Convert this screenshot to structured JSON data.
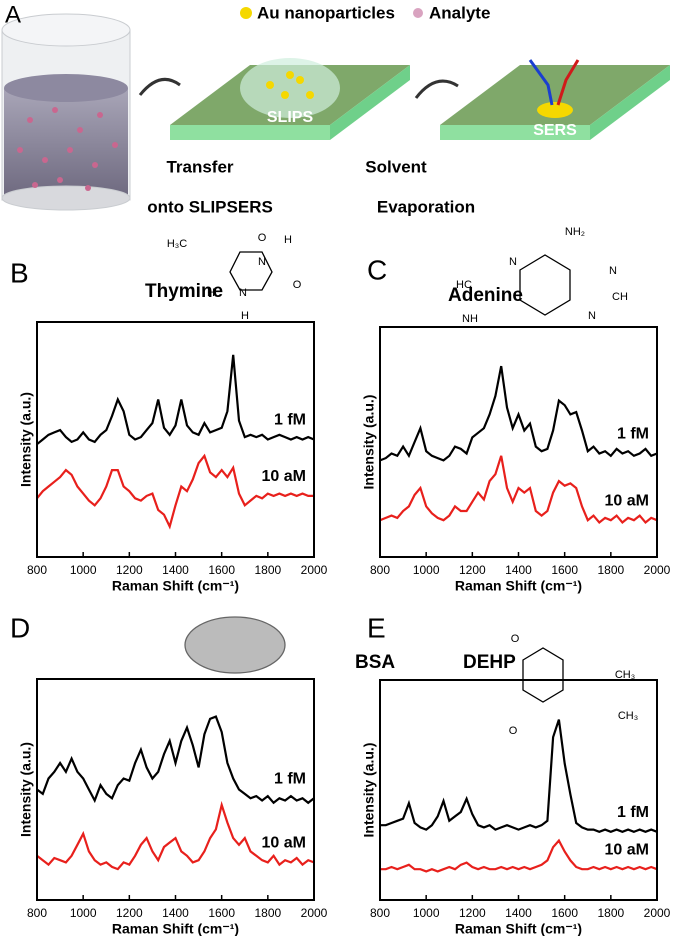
{
  "schematic": {
    "panel_label": "A",
    "legend": [
      "Au nanoparticles",
      "Analyte"
    ],
    "surfaces": [
      "SLIPS",
      "SERS"
    ],
    "steps": [
      [
        "Transfer",
        "onto SLIPSERS"
      ],
      [
        "Solvent",
        "Evaporation"
      ]
    ]
  },
  "chart_data": [
    {
      "type": "line",
      "panel_label": "B",
      "title": "Thymine",
      "xlabel": "Raman Shift (cm⁻¹)",
      "ylabel": "Intensity (a.u.)",
      "structure_labels": [
        "O",
        "H₃C",
        "N",
        "H",
        "H",
        "N",
        "O",
        "H"
      ],
      "xlim": [
        800,
        2000
      ],
      "xticks": [
        800,
        1000,
        1200,
        1400,
        1600,
        1800,
        2000
      ],
      "ylim": [
        0,
        100
      ],
      "x": [
        800,
        825,
        850,
        875,
        900,
        925,
        950,
        975,
        1000,
        1025,
        1050,
        1075,
        1100,
        1125,
        1150,
        1175,
        1200,
        1225,
        1250,
        1275,
        1300,
        1325,
        1350,
        1375,
        1400,
        1425,
        1450,
        1475,
        1500,
        1525,
        1550,
        1575,
        1600,
        1625,
        1650,
        1675,
        1700,
        1725,
        1750,
        1775,
        1800,
        1825,
        1850,
        1875,
        1900,
        1925,
        1950,
        1975,
        2000
      ],
      "series": [
        {
          "name": "1 fM",
          "color": "#000000",
          "values": [
            48,
            50,
            52,
            53,
            54,
            51,
            49,
            50,
            53,
            50,
            49,
            52,
            54,
            60,
            67,
            62,
            52,
            50,
            51,
            54,
            57,
            67,
            55,
            52,
            56,
            67,
            56,
            53,
            52,
            57,
            53,
            54,
            55,
            62,
            86,
            58,
            51,
            52,
            51,
            52,
            50,
            51,
            52,
            51,
            50,
            51,
            50,
            51,
            50
          ]
        },
        {
          "name": "10 aM",
          "color": "#e8201c",
          "values": [
            25,
            28,
            30,
            32,
            34,
            37,
            35,
            30,
            27,
            24,
            22,
            25,
            30,
            37,
            37,
            30,
            28,
            25,
            24,
            26,
            27,
            20,
            18,
            13,
            22,
            30,
            28,
            33,
            40,
            43,
            36,
            34,
            37,
            34,
            38,
            27,
            22,
            24,
            26,
            25,
            27,
            26,
            27,
            26,
            27,
            26,
            27,
            26,
            26
          ]
        }
      ]
    },
    {
      "type": "line",
      "panel_label": "C",
      "title": "Adenine",
      "xlabel": "Raman Shift (cm⁻¹)",
      "ylabel": "Intensity (a.u.)",
      "structure_labels": [
        "NH₂",
        "N",
        "N",
        "HC",
        "CH",
        "NH",
        "N"
      ],
      "xlim": [
        800,
        2000
      ],
      "xticks": [
        800,
        1000,
        1200,
        1400,
        1600,
        1800,
        2000
      ],
      "ylim": [
        0,
        100
      ],
      "x": [
        800,
        825,
        850,
        875,
        900,
        925,
        950,
        975,
        1000,
        1025,
        1050,
        1075,
        1100,
        1125,
        1150,
        1175,
        1200,
        1225,
        1250,
        1275,
        1300,
        1325,
        1350,
        1375,
        1400,
        1425,
        1450,
        1475,
        1500,
        1525,
        1550,
        1575,
        1600,
        1625,
        1650,
        1675,
        1700,
        1725,
        1750,
        1775,
        1800,
        1825,
        1850,
        1875,
        1900,
        1925,
        1950,
        1975,
        2000
      ],
      "series": [
        {
          "name": "1 fM",
          "color": "#000000",
          "values": [
            42,
            43,
            45,
            44,
            48,
            44,
            50,
            56,
            46,
            44,
            43,
            42,
            44,
            48,
            47,
            45,
            52,
            54,
            56,
            62,
            70,
            83,
            65,
            56,
            62,
            55,
            58,
            48,
            46,
            47,
            55,
            68,
            66,
            62,
            63,
            55,
            46,
            48,
            45,
            46,
            44,
            47,
            45,
            46,
            44,
            45,
            47,
            44,
            45
          ]
        },
        {
          "name": "10 aM",
          "color": "#e8201c",
          "values": [
            16,
            17,
            18,
            17,
            20,
            22,
            27,
            30,
            22,
            19,
            17,
            16,
            18,
            22,
            20,
            20,
            24,
            28,
            25,
            33,
            36,
            44,
            30,
            24,
            30,
            28,
            30,
            20,
            18,
            20,
            28,
            33,
            31,
            32,
            30,
            22,
            16,
            18,
            15,
            17,
            16,
            18,
            15,
            17,
            16,
            18,
            15,
            17,
            16
          ]
        }
      ]
    },
    {
      "type": "line",
      "panel_label": "D",
      "title": "BSA",
      "xlabel": "Raman Shift (cm⁻¹)",
      "ylabel": "Intensity (a.u.)",
      "structure_labels": [],
      "xlim": [
        800,
        2000
      ],
      "xticks": [
        800,
        1000,
        1200,
        1400,
        1600,
        1800,
        2000
      ],
      "ylim": [
        0,
        100
      ],
      "x": [
        800,
        825,
        850,
        875,
        900,
        925,
        950,
        975,
        1000,
        1025,
        1050,
        1075,
        1100,
        1125,
        1150,
        1175,
        1200,
        1225,
        1250,
        1275,
        1300,
        1325,
        1350,
        1375,
        1400,
        1425,
        1450,
        1475,
        1500,
        1525,
        1550,
        1575,
        1600,
        1625,
        1650,
        1675,
        1700,
        1725,
        1750,
        1775,
        1800,
        1825,
        1850,
        1875,
        1900,
        1925,
        1950,
        1975,
        2000
      ],
      "series": [
        {
          "name": "1 fM",
          "color": "#000000",
          "values": [
            50,
            48,
            55,
            58,
            62,
            58,
            64,
            58,
            55,
            50,
            45,
            52,
            48,
            46,
            52,
            55,
            54,
            62,
            68,
            60,
            55,
            58,
            66,
            72,
            62,
            72,
            78,
            70,
            60,
            75,
            82,
            83,
            76,
            62,
            55,
            50,
            48,
            46,
            47,
            45,
            47,
            44,
            46,
            45,
            47,
            45,
            46,
            44,
            46
          ]
        },
        {
          "name": "10 aM",
          "color": "#e8201c",
          "values": [
            20,
            18,
            16,
            19,
            18,
            17,
            20,
            25,
            30,
            22,
            18,
            16,
            17,
            15,
            14,
            17,
            16,
            20,
            25,
            28,
            22,
            18,
            24,
            26,
            28,
            22,
            20,
            17,
            18,
            22,
            28,
            32,
            43,
            35,
            28,
            25,
            28,
            22,
            20,
            18,
            17,
            20,
            16,
            18,
            17,
            19,
            16,
            18,
            17
          ]
        }
      ]
    },
    {
      "type": "line",
      "panel_label": "E",
      "title": "DEHP",
      "xlabel": "Raman Shift (cm⁻¹)",
      "ylabel": "Intensity (a.u.)",
      "structure_labels": [
        "O",
        "O",
        "CH₃",
        "CH₃"
      ],
      "xlim": [
        800,
        2000
      ],
      "xticks": [
        800,
        1000,
        1200,
        1400,
        1600,
        1800,
        2000
      ],
      "ylim": [
        0,
        100
      ],
      "x": [
        800,
        825,
        850,
        875,
        900,
        925,
        950,
        975,
        1000,
        1025,
        1050,
        1075,
        1100,
        1125,
        1150,
        1175,
        1200,
        1225,
        1250,
        1275,
        1300,
        1325,
        1350,
        1375,
        1400,
        1425,
        1450,
        1475,
        1500,
        1525,
        1550,
        1575,
        1600,
        1625,
        1650,
        1675,
        1700,
        1725,
        1750,
        1775,
        1800,
        1825,
        1850,
        1875,
        1900,
        1925,
        1950,
        1975,
        2000
      ],
      "series": [
        {
          "name": "1 fM",
          "color": "#000000",
          "values": [
            34,
            34,
            35,
            36,
            37,
            44,
            35,
            33,
            32,
            34,
            38,
            45,
            36,
            38,
            40,
            46,
            39,
            34,
            33,
            34,
            32,
            33,
            34,
            33,
            32,
            33,
            34,
            33,
            34,
            36,
            74,
            82,
            62,
            48,
            35,
            33,
            32,
            32,
            31,
            32,
            31,
            32,
            31,
            32,
            31,
            32,
            31,
            32,
            31
          ]
        },
        {
          "name": "10 aM",
          "color": "#e8201c",
          "values": [
            14,
            14,
            15,
            14,
            15,
            16,
            14,
            14,
            13,
            14,
            13,
            14,
            15,
            14,
            16,
            17,
            15,
            14,
            15,
            14,
            14,
            15,
            14,
            15,
            14,
            15,
            14,
            15,
            16,
            18,
            24,
            27,
            22,
            18,
            15,
            14,
            14,
            15,
            14,
            15,
            14,
            15,
            14,
            15,
            14,
            15,
            14,
            15,
            14
          ]
        }
      ]
    }
  ]
}
